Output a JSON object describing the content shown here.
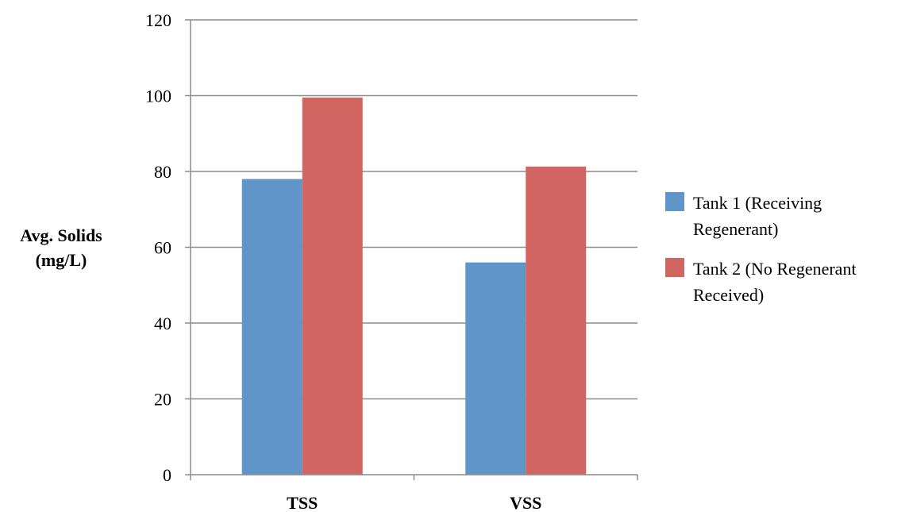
{
  "chart_data": {
    "type": "bar",
    "categories": [
      "TSS",
      "VSS"
    ],
    "series": [
      {
        "name": "Tank 1 (Receiving Regenerant)",
        "legend_lines": [
          "Tank 1 (Receiving",
          "Regenerant)"
        ],
        "color": "#5F95C8",
        "values": [
          78,
          56
        ]
      },
      {
        "name": "Tank 2 (No Regenerant Received)",
        "legend_lines": [
          "Tank 2 (No Regenerant",
          "Received)"
        ],
        "color": "#D06561",
        "values": [
          99.5,
          81.3
        ]
      }
    ],
    "ylabel_lines": [
      "Avg. Solids",
      "(mg/L)"
    ],
    "ylim": [
      0,
      120
    ],
    "yticks": [
      0,
      20,
      40,
      60,
      80,
      100,
      120
    ],
    "grid": true,
    "legend_position": "right"
  }
}
